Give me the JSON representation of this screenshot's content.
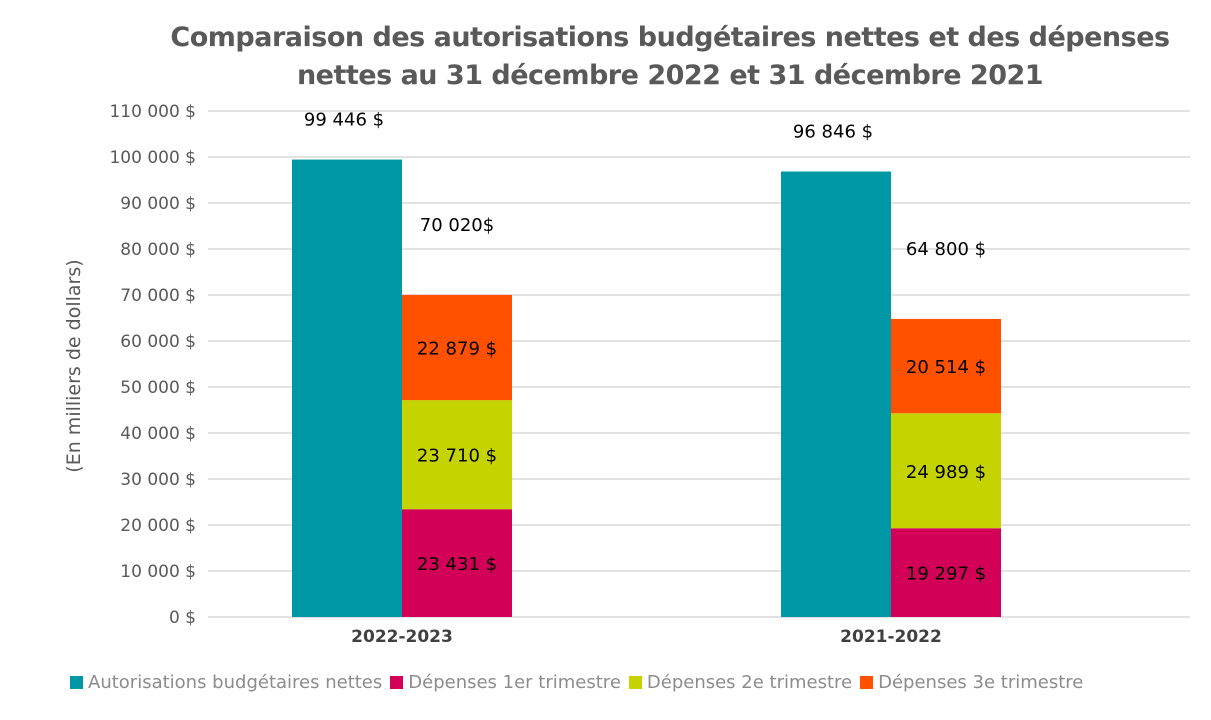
{
  "chart_data": {
    "type": "bar",
    "title": "Comparaison des autorisations budgétaires nettes et des dépenses nettes au 31 décembre 2022 et 31 décembre 2021",
    "title_lines": [
      "Comparaison des autorisations budgétaires nettes et des dépenses",
      "nettes au 31 décembre 2022 et 31 décembre 2021"
    ],
    "xlabel": "",
    "ylabel": "(En milliers de dollars)",
    "ylim": [
      0,
      110000
    ],
    "yticks": [
      0,
      10000,
      20000,
      30000,
      40000,
      50000,
      60000,
      70000,
      80000,
      90000,
      100000,
      110000
    ],
    "ytick_labels": [
      "0 $",
      "10 000 $",
      "20 000 $",
      "30 000 $",
      "40 000 $",
      "50 000 $",
      "60 000 $",
      "70 000 $",
      "80 000 $",
      "90 000 $",
      "100 000 $",
      "110 000 $"
    ],
    "grid": true,
    "legend_position": "bottom",
    "categories": [
      "2022-2023",
      "2021-2022"
    ],
    "series": [
      {
        "name": "Autorisations budgétaires nettes",
        "color": "#0097A7",
        "stack": "authorizations",
        "values": [
          99446,
          96846
        ],
        "labels": [
          "99 446 $",
          "96 846 $"
        ]
      },
      {
        "name": "Dépenses 1er trimestre",
        "color": "#D30058",
        "stack": "expenses",
        "values": [
          23431,
          19297
        ],
        "labels": [
          "23 431 $",
          "19 297 $"
        ]
      },
      {
        "name": "Dépenses 2e trimestre",
        "color": "#C5D400",
        "stack": "expenses",
        "values": [
          23710,
          24989
        ],
        "labels": [
          "23 710 $",
          "24 989 $"
        ]
      },
      {
        "name": "Dépenses 3e trimestre",
        "color": "#FF5100",
        "stack": "expenses",
        "values": [
          22879,
          20514
        ],
        "labels": [
          "22 879 $",
          "20 514 $"
        ]
      }
    ],
    "totals": {
      "stack": "expenses",
      "values": [
        70020,
        64800
      ],
      "labels": [
        "70 020$",
        "64 800 $"
      ]
    }
  }
}
